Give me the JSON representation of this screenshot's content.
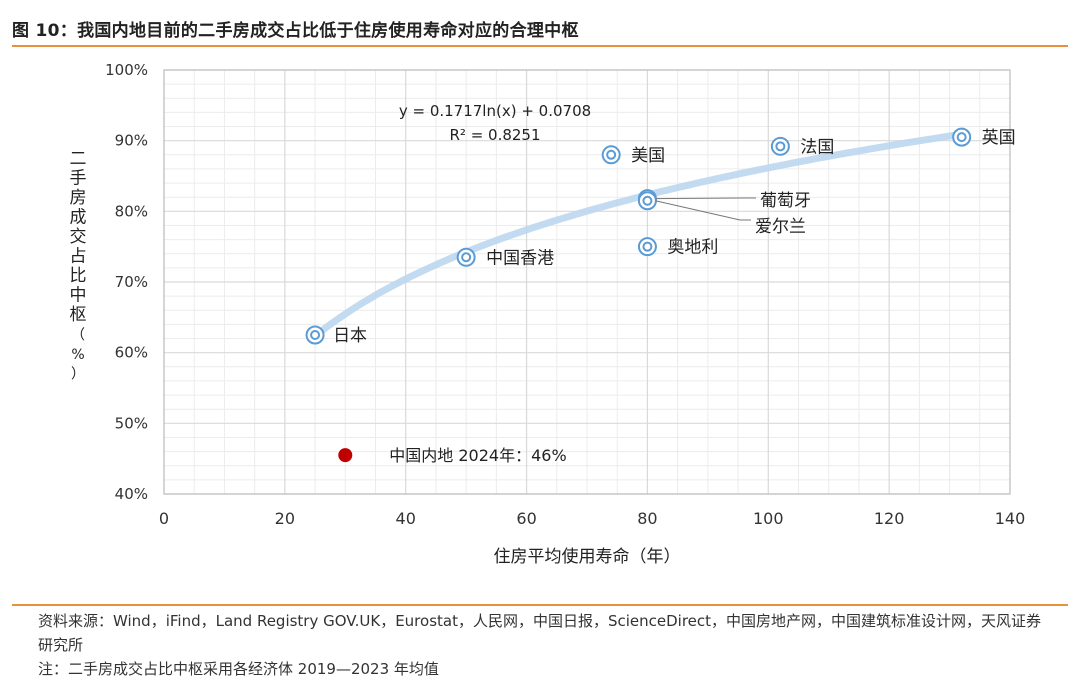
{
  "figure": {
    "title": "图 10：我国内地目前的二手房成交占比低于住房使用寿命对应的合理中枢"
  },
  "chart_data": {
    "type": "scatter",
    "title": "",
    "xlabel": "住房平均使用寿命（年）",
    "ylabel": "二手房成交占比中枢（%）",
    "xlim": [
      0,
      140
    ],
    "ylim": [
      0.4,
      1.0
    ],
    "x_ticks": [
      0,
      20,
      40,
      60,
      80,
      100,
      120,
      140
    ],
    "y_ticks": [
      0.4,
      0.5,
      0.6,
      0.7,
      0.8,
      0.9,
      1.0
    ],
    "y_tick_labels": [
      "40%",
      "50%",
      "60%",
      "70%",
      "80%",
      "90%",
      "100%"
    ],
    "grid": true,
    "series": [
      {
        "points": [
          {
            "label": "日本",
            "x": 25,
            "y": 0.625
          },
          {
            "label": "中国香港",
            "x": 50,
            "y": 0.735
          },
          {
            "label": "美国",
            "x": 74,
            "y": 0.88
          },
          {
            "label": "葡萄牙",
            "x": 80,
            "y": 0.818
          },
          {
            "label": "爱尔兰",
            "x": 80,
            "y": 0.815
          },
          {
            "label": "奥地利",
            "x": 80,
            "y": 0.75
          },
          {
            "label": "法国",
            "x": 102,
            "y": 0.892
          },
          {
            "label": "英国",
            "x": 132,
            "y": 0.905
          }
        ]
      }
    ],
    "highlight": {
      "label": "中国内地 2024年：46%",
      "x": 30,
      "y": 0.455,
      "color": "#c00000"
    },
    "trendline": {
      "equation": "y = 0.1717ln(x) + 0.0708",
      "r2": "R² = 0.8251",
      "a": 0.1717,
      "b": 0.0708,
      "x_range": [
        25,
        132
      ]
    },
    "colors": {
      "marker": "#5b9bd5",
      "trend": "#bdd7ee",
      "highlight": "#c00000",
      "grid": "#d9d9d9"
    }
  },
  "footer": {
    "source": "资料来源：Wind，iFind，Land Registry GOV.UK，Eurostat，人民网，中国日报，ScienceDirect，中国房地产网，中国建筑标准设计网，天风证券研究所",
    "note": "注：二手房成交占比中枢采用各经济体 2019—2023 年均值"
  }
}
